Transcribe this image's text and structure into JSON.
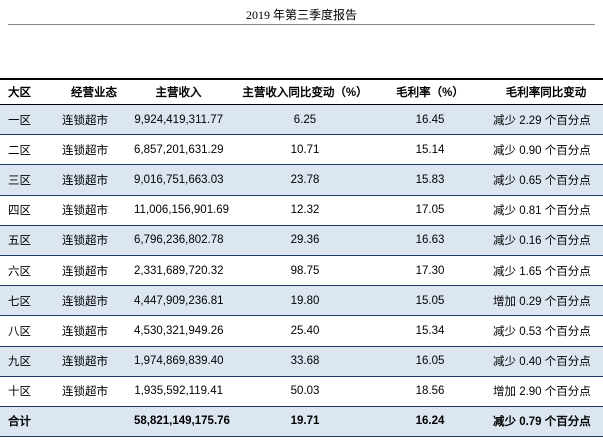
{
  "header": {
    "title": "2019 年第三季度报告"
  },
  "table": {
    "columns": [
      "大区",
      "经营业态",
      "主营收入",
      "主营收入同比变动（%）",
      "毛利率（%）",
      "毛利率同比变动"
    ],
    "rows": [
      [
        "一区",
        "连锁超市",
        "9,924,419,311.77",
        "6.25",
        "16.45",
        "减少 2.29 个百分点"
      ],
      [
        "二区",
        "连锁超市",
        "6,857,201,631.29",
        "10.71",
        "15.14",
        "减少 0.90 个百分点"
      ],
      [
        "三区",
        "连锁超市",
        "9,016,751,663.03",
        "23.78",
        "15.83",
        "减少 0.65 个百分点"
      ],
      [
        "四区",
        "连锁超市",
        "11,006,156,901.69",
        "12.32",
        "17.05",
        "减少 0.81 个百分点"
      ],
      [
        "五区",
        "连锁超市",
        "6,796,236,802.78",
        "29.36",
        "16.63",
        "减少 0.16 个百分点"
      ],
      [
        "六区",
        "连锁超市",
        "2,331,689,720.32",
        "98.75",
        "17.30",
        "减少 1.65 个百分点"
      ],
      [
        "七区",
        "连锁超市",
        "4,447,909,236.81",
        "19.80",
        "15.05",
        "增加 0.29 个百分点"
      ],
      [
        "八区",
        "连锁超市",
        "4,530,321,949.26",
        "25.40",
        "15.34",
        "减少 0.53 个百分点"
      ],
      [
        "九区",
        "连锁超市",
        "1,974,869,839.40",
        "33.68",
        "16.05",
        "减少 0.40 个百分点"
      ],
      [
        "十区",
        "连锁超市",
        "1,935,592,119.41",
        "50.03",
        "18.56",
        "增加 2.90 个百分点"
      ]
    ],
    "total": [
      "合计",
      "",
      "58,821,149,175.76",
      "19.71",
      "16.24",
      "减少 0.79 个百分点"
    ]
  }
}
